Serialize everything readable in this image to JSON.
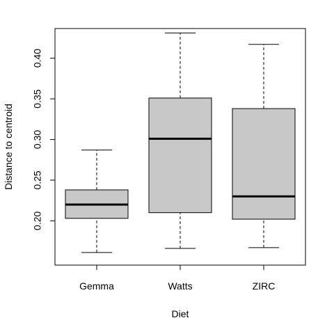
{
  "chart_data": {
    "type": "boxplot",
    "title": "",
    "xlabel": "Diet",
    "ylabel": "Distance to centroid",
    "categories": [
      "Gemma",
      "Watts",
      "ZIRC"
    ],
    "boxes": [
      {
        "category": "Gemma",
        "whisker_low": 0.161,
        "q1": 0.203,
        "median": 0.22,
        "q3": 0.238,
        "whisker_high": 0.287
      },
      {
        "category": "Watts",
        "whisker_low": 0.166,
        "q1": 0.21,
        "median": 0.301,
        "q3": 0.351,
        "whisker_high": 0.431
      },
      {
        "category": "ZIRC",
        "whisker_low": 0.167,
        "q1": 0.202,
        "median": 0.23,
        "q3": 0.338,
        "whisker_high": 0.417
      }
    ],
    "yticks": [
      0.2,
      0.25,
      0.3,
      0.35,
      0.4
    ],
    "ytick_labels": [
      "0.20",
      "0.25",
      "0.30",
      "0.35",
      "0.40"
    ],
    "ylim": [
      0.1455,
      0.4365
    ],
    "grid": false,
    "box_fill": "#c8c8c8",
    "median_color": "#000000"
  }
}
